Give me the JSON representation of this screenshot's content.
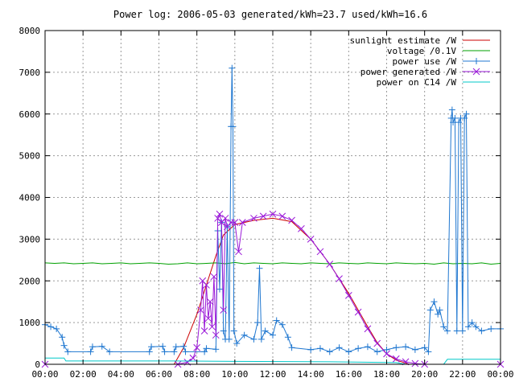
{
  "chart_data": {
    "type": "line",
    "title": "Power log: 2006-05-03 generated/kWh=23.7 used/kWh=16.6",
    "xlabel": "",
    "ylabel": "",
    "x_unit": "hours",
    "xlim": [
      0,
      24
    ],
    "ylim": [
      0,
      8000
    ],
    "grid": true,
    "legend_position": "top-right",
    "x_ticks": [
      {
        "value": 0,
        "label": "00:00"
      },
      {
        "value": 2,
        "label": "02:00"
      },
      {
        "value": 4,
        "label": "04:00"
      },
      {
        "value": 6,
        "label": "06:00"
      },
      {
        "value": 8,
        "label": "08:00"
      },
      {
        "value": 10,
        "label": "10:00"
      },
      {
        "value": 12,
        "label": "12:00"
      },
      {
        "value": 14,
        "label": "14:00"
      },
      {
        "value": 16,
        "label": "16:00"
      },
      {
        "value": 18,
        "label": "18:00"
      },
      {
        "value": 20,
        "label": "20:00"
      },
      {
        "value": 22,
        "label": "22:00"
      },
      {
        "value": 24,
        "label": "00:00"
      }
    ],
    "y_ticks": [
      {
        "value": 0,
        "label": "0"
      },
      {
        "value": 1000,
        "label": "1000"
      },
      {
        "value": 2000,
        "label": "2000"
      },
      {
        "value": 3000,
        "label": "3000"
      },
      {
        "value": 4000,
        "label": "4000"
      },
      {
        "value": 5000,
        "label": "5000"
      },
      {
        "value": 6000,
        "label": "6000"
      },
      {
        "value": 7000,
        "label": "7000"
      },
      {
        "value": 8000,
        "label": "8000"
      }
    ],
    "series": [
      {
        "name": "sunlight estimate /W",
        "color": "#cc0000",
        "marker": "none",
        "points": [
          [
            0,
            0
          ],
          [
            6.8,
            0
          ],
          [
            7.3,
            400
          ],
          [
            8.0,
            1200
          ],
          [
            8.5,
            1900
          ],
          [
            9.0,
            2600
          ],
          [
            9.4,
            3100
          ],
          [
            10.0,
            3350
          ],
          [
            11.0,
            3450
          ],
          [
            12.0,
            3500
          ],
          [
            13.0,
            3420
          ],
          [
            14.0,
            3000
          ],
          [
            15.0,
            2400
          ],
          [
            16.0,
            1700
          ],
          [
            17.0,
            900
          ],
          [
            17.5,
            520
          ],
          [
            18.0,
            250
          ],
          [
            18.5,
            100
          ],
          [
            19.2,
            0
          ],
          [
            24,
            0
          ]
        ]
      },
      {
        "name": "voltage /0.1V",
        "color": "#00a000",
        "marker": "none",
        "points": [
          [
            0,
            2430
          ],
          [
            0.5,
            2420
          ],
          [
            1,
            2430
          ],
          [
            1.5,
            2410
          ],
          [
            2,
            2420
          ],
          [
            2.5,
            2430
          ],
          [
            3,
            2410
          ],
          [
            3.5,
            2420
          ],
          [
            4,
            2430
          ],
          [
            4.5,
            2410
          ],
          [
            5,
            2420
          ],
          [
            5.5,
            2430
          ],
          [
            6,
            2420
          ],
          [
            6.5,
            2400
          ],
          [
            7,
            2410
          ],
          [
            7.5,
            2430
          ],
          [
            8,
            2410
          ],
          [
            8.5,
            2420
          ],
          [
            9,
            2430
          ],
          [
            9.5,
            2410
          ],
          [
            10,
            2440
          ],
          [
            10.5,
            2410
          ],
          [
            11,
            2430
          ],
          [
            11.5,
            2420
          ],
          [
            12,
            2410
          ],
          [
            12.5,
            2430
          ],
          [
            13,
            2420
          ],
          [
            13.5,
            2410
          ],
          [
            14,
            2430
          ],
          [
            14.5,
            2420
          ],
          [
            15,
            2410
          ],
          [
            15.5,
            2430
          ],
          [
            16,
            2420
          ],
          [
            16.5,
            2410
          ],
          [
            17,
            2430
          ],
          [
            17.5,
            2420
          ],
          [
            18,
            2410
          ],
          [
            18.5,
            2430
          ],
          [
            19,
            2420
          ],
          [
            19.5,
            2410
          ],
          [
            20,
            2420
          ],
          [
            20.5,
            2400
          ],
          [
            21,
            2430
          ],
          [
            21.5,
            2410
          ],
          [
            22,
            2420
          ],
          [
            22.5,
            2410
          ],
          [
            23,
            2430
          ],
          [
            23.5,
            2400
          ],
          [
            24,
            2420
          ]
        ]
      },
      {
        "name": "power use /W",
        "color": "#1f77d0",
        "marker": "plus",
        "points": [
          [
            0,
            950
          ],
          [
            0.3,
            900
          ],
          [
            0.6,
            850
          ],
          [
            0.9,
            650
          ],
          [
            1.0,
            450
          ],
          [
            1.2,
            300
          ],
          [
            2.4,
            300
          ],
          [
            2.5,
            420
          ],
          [
            3.0,
            430
          ],
          [
            3.4,
            300
          ],
          [
            5.5,
            300
          ],
          [
            5.6,
            420
          ],
          [
            6.2,
            430
          ],
          [
            6.3,
            300
          ],
          [
            6.8,
            300
          ],
          [
            6.9,
            420
          ],
          [
            7.3,
            430
          ],
          [
            7.4,
            300
          ],
          [
            8.4,
            300
          ],
          [
            8.5,
            380
          ],
          [
            9.0,
            360
          ],
          [
            9.1,
            3200
          ],
          [
            9.2,
            1800
          ],
          [
            9.3,
            3400
          ],
          [
            9.4,
            800
          ],
          [
            9.5,
            600
          ],
          [
            9.6,
            3300
          ],
          [
            9.7,
            600
          ],
          [
            9.8,
            5700
          ],
          [
            9.85,
            7100
          ],
          [
            9.9,
            5700
          ],
          [
            9.95,
            800
          ],
          [
            10.1,
            500
          ],
          [
            10.5,
            700
          ],
          [
            11.0,
            600
          ],
          [
            11.2,
            1000
          ],
          [
            11.3,
            2300
          ],
          [
            11.4,
            600
          ],
          [
            11.6,
            800
          ],
          [
            12.0,
            700
          ],
          [
            12.2,
            1050
          ],
          [
            12.5,
            950
          ],
          [
            12.8,
            650
          ],
          [
            13.0,
            400
          ],
          [
            14.0,
            350
          ],
          [
            14.5,
            380
          ],
          [
            15.0,
            300
          ],
          [
            15.5,
            400
          ],
          [
            16.0,
            300
          ],
          [
            16.5,
            380
          ],
          [
            17.0,
            420
          ],
          [
            17.5,
            300
          ],
          [
            18.0,
            350
          ],
          [
            18.5,
            400
          ],
          [
            19.0,
            420
          ],
          [
            19.5,
            350
          ],
          [
            20.0,
            400
          ],
          [
            20.2,
            300
          ],
          [
            20.3,
            1300
          ],
          [
            20.5,
            1500
          ],
          [
            20.7,
            1200
          ],
          [
            20.8,
            1300
          ],
          [
            21.0,
            900
          ],
          [
            21.2,
            800
          ],
          [
            21.4,
            5900
          ],
          [
            21.45,
            6100
          ],
          [
            21.5,
            5800
          ],
          [
            21.6,
            5900
          ],
          [
            21.7,
            800
          ],
          [
            21.8,
            5800
          ],
          [
            21.9,
            5900
          ],
          [
            22.0,
            800
          ],
          [
            22.1,
            5900
          ],
          [
            22.2,
            6000
          ],
          [
            22.3,
            900
          ],
          [
            22.5,
            1000
          ],
          [
            22.7,
            900
          ],
          [
            23.0,
            800
          ],
          [
            23.5,
            850
          ],
          [
            24.0,
            850
          ]
        ]
      },
      {
        "name": "power generated /W",
        "color": "#9a18d8",
        "marker": "cross",
        "points": [
          [
            0,
            0
          ],
          [
            7.0,
            0
          ],
          [
            7.5,
            50
          ],
          [
            7.8,
            150
          ],
          [
            8.0,
            400
          ],
          [
            8.2,
            1300
          ],
          [
            8.3,
            2000
          ],
          [
            8.4,
            800
          ],
          [
            8.5,
            1900
          ],
          [
            8.6,
            1100
          ],
          [
            8.7,
            1500
          ],
          [
            8.8,
            900
          ],
          [
            8.9,
            2100
          ],
          [
            9.0,
            700
          ],
          [
            9.1,
            3500
          ],
          [
            9.2,
            3600
          ],
          [
            9.3,
            3400
          ],
          [
            9.4,
            1300
          ],
          [
            9.5,
            3500
          ],
          [
            9.6,
            3300
          ],
          [
            9.8,
            3400
          ],
          [
            10.0,
            3400
          ],
          [
            10.2,
            2700
          ],
          [
            10.4,
            3400
          ],
          [
            11.0,
            3500
          ],
          [
            11.5,
            3550
          ],
          [
            12.0,
            3600
          ],
          [
            12.5,
            3550
          ],
          [
            13.0,
            3450
          ],
          [
            13.5,
            3250
          ],
          [
            14.0,
            3000
          ],
          [
            14.5,
            2700
          ],
          [
            15.0,
            2400
          ],
          [
            15.5,
            2050
          ],
          [
            16.0,
            1650
          ],
          [
            16.5,
            1250
          ],
          [
            17.0,
            850
          ],
          [
            17.5,
            500
          ],
          [
            18.0,
            250
          ],
          [
            18.5,
            130
          ],
          [
            19.0,
            60
          ],
          [
            19.5,
            20
          ],
          [
            20.0,
            0
          ],
          [
            24,
            0
          ]
        ]
      },
      {
        "name": "power on C14 /W",
        "color": "#00c8c8",
        "marker": "none",
        "points": [
          [
            0,
            150
          ],
          [
            1.0,
            150
          ],
          [
            1.1,
            80
          ],
          [
            7.0,
            80
          ],
          [
            10.0,
            70
          ],
          [
            15.0,
            60
          ],
          [
            18.5,
            40
          ],
          [
            19.0,
            0
          ],
          [
            21.0,
            0
          ],
          [
            21.2,
            120
          ],
          [
            24,
            120
          ]
        ]
      }
    ]
  }
}
